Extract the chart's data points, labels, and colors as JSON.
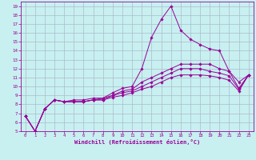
{
  "xlabel": "Windchill (Refroidissement éolien,°C)",
  "bg_color": "#c8f0f0",
  "grid_color": "#aabbcc",
  "line_color": "#990099",
  "xlim": [
    -0.5,
    23.5
  ],
  "ylim": [
    5,
    19.5
  ],
  "xticks": [
    0,
    1,
    2,
    3,
    4,
    5,
    6,
    7,
    8,
    9,
    10,
    11,
    12,
    13,
    14,
    15,
    16,
    17,
    18,
    19,
    20,
    21,
    22,
    23
  ],
  "yticks": [
    5,
    6,
    7,
    8,
    9,
    10,
    11,
    12,
    13,
    14,
    15,
    16,
    17,
    18,
    19
  ],
  "curves": [
    {
      "x": [
        0,
        1,
        2,
        3,
        4,
        5,
        6,
        7,
        8,
        9,
        10,
        11,
        12,
        13,
        14,
        15,
        16,
        17,
        18,
        19,
        20,
        21,
        22,
        23
      ],
      "y": [
        6.7,
        5.0,
        7.5,
        8.5,
        8.3,
        8.5,
        8.5,
        8.7,
        8.7,
        9.3,
        9.8,
        10.0,
        12.0,
        15.5,
        17.5,
        19.0,
        16.3,
        15.3,
        14.7,
        14.2,
        14.0,
        11.7,
        9.8,
        11.3
      ]
    },
    {
      "x": [
        0,
        1,
        2,
        3,
        4,
        5,
        6,
        7,
        8,
        9,
        10,
        11,
        12,
        13,
        14,
        15,
        16,
        17,
        18,
        19,
        20,
        21,
        22,
        23
      ],
      "y": [
        6.7,
        5.0,
        7.5,
        8.5,
        8.3,
        8.3,
        8.3,
        8.5,
        8.7,
        9.0,
        9.5,
        9.7,
        10.5,
        11.0,
        11.5,
        12.0,
        12.5,
        12.5,
        12.5,
        12.5,
        12.0,
        11.7,
        10.5,
        11.3
      ]
    },
    {
      "x": [
        0,
        1,
        2,
        3,
        4,
        5,
        6,
        7,
        8,
        9,
        10,
        11,
        12,
        13,
        14,
        15,
        16,
        17,
        18,
        19,
        20,
        21,
        22,
        23
      ],
      "y": [
        6.7,
        5.0,
        7.5,
        8.5,
        8.3,
        8.3,
        8.3,
        8.5,
        8.5,
        9.0,
        9.3,
        9.5,
        10.0,
        10.5,
        11.0,
        11.5,
        12.0,
        12.0,
        12.0,
        11.7,
        11.5,
        11.2,
        9.7,
        11.3
      ]
    },
    {
      "x": [
        0,
        1,
        2,
        3,
        4,
        5,
        6,
        7,
        8,
        9,
        10,
        11,
        12,
        13,
        14,
        15,
        16,
        17,
        18,
        19,
        20,
        21,
        22,
        23
      ],
      "y": [
        6.7,
        5.0,
        7.5,
        8.5,
        8.3,
        8.3,
        8.3,
        8.5,
        8.5,
        8.8,
        9.0,
        9.3,
        9.7,
        10.0,
        10.5,
        11.0,
        11.3,
        11.3,
        11.3,
        11.2,
        11.0,
        10.7,
        9.5,
        11.3
      ]
    }
  ]
}
